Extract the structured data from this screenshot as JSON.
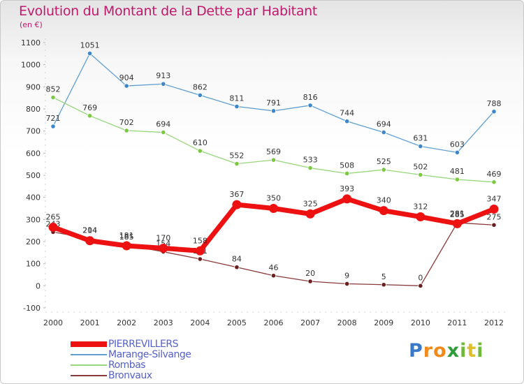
{
  "title": "Evolution du Montant de la Dette par Habitant",
  "subtitle": "(en €)",
  "logo_letters": [
    "P",
    "r",
    "o",
    "x",
    "i",
    "t",
    "i"
  ],
  "logo_colors": [
    "#3a78c8",
    "#f08a1c",
    "#f08a1c",
    "#2f9e3a",
    "#6fb83a",
    "#e0c02a",
    "#6fb83a"
  ],
  "chart_data": {
    "type": "line",
    "x": [
      "2000",
      "2001",
      "2002",
      "2003",
      "2004",
      "2005",
      "2006",
      "2007",
      "2008",
      "2009",
      "2010",
      "2011",
      "2012"
    ],
    "ylim": [
      -100,
      1100
    ],
    "yticks": [
      "-100",
      "0",
      "100",
      "200",
      "300",
      "400",
      "500",
      "600",
      "700",
      "800",
      "900",
      "1000",
      "1100"
    ],
    "grid": false,
    "legend_position": "bottom-left",
    "series": [
      {
        "name": "Marange-Silvange",
        "color": "#5f9fd0",
        "point_color": "#3d86c9",
        "values": [
          721,
          1051,
          904,
          913,
          862,
          811,
          791,
          816,
          744,
          694,
          631,
          603,
          788
        ]
      },
      {
        "name": "Rombas",
        "color": "#96d77a",
        "point_color": "#7cc842",
        "values": [
          852,
          769,
          702,
          694,
          610,
          552,
          569,
          533,
          508,
          525,
          502,
          481,
          469
        ]
      },
      {
        "name": "Bronvaux",
        "color": "#8a3a3a",
        "point_color": "#6b1e1e",
        "values": [
          243,
          214,
          185,
          154,
          121,
          84,
          46,
          20,
          9,
          5,
          0,
          285,
          275
        ]
      },
      {
        "name": "PIERREVILLERS",
        "color": "#ee1111",
        "point_color": "#ee1111",
        "values": [
          265,
          204,
          181,
          170,
          158,
          367,
          350,
          325,
          393,
          340,
          312,
          281,
          347
        ]
      }
    ]
  }
}
